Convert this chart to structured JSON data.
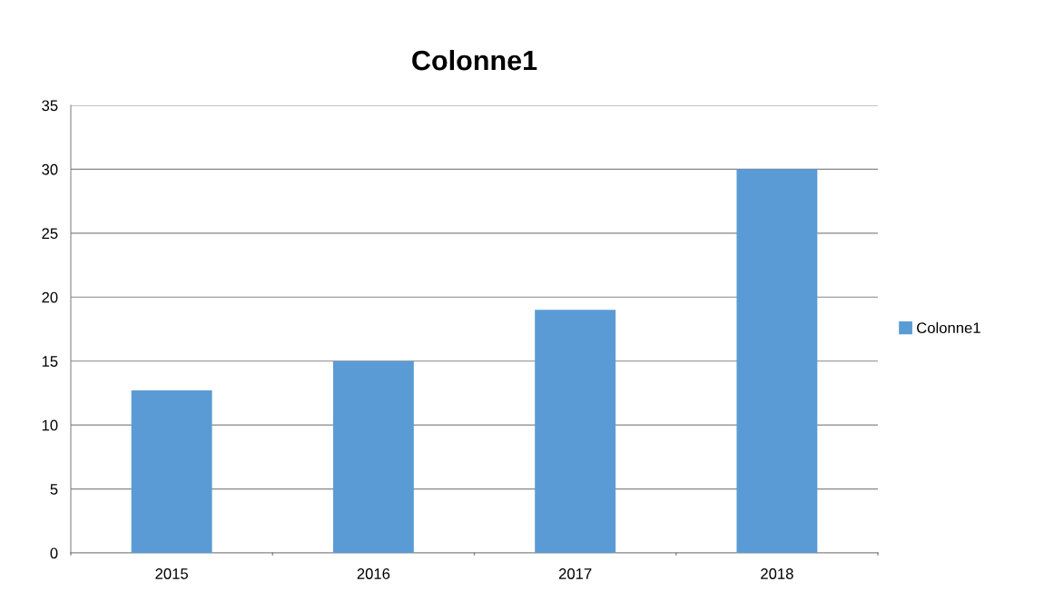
{
  "chart_data": {
    "type": "bar",
    "title": "Colonne1",
    "categories": [
      "2015",
      "2016",
      "2017",
      "2018"
    ],
    "series": [
      {
        "name": "Colonne1",
        "color": "#5b9bd5",
        "values": [
          12.7,
          15,
          19,
          30
        ]
      }
    ],
    "ylim": [
      0,
      35
    ],
    "yticks": [
      0,
      5,
      10,
      15,
      20,
      25,
      30,
      35
    ],
    "grid": "y",
    "legend": "right"
  }
}
